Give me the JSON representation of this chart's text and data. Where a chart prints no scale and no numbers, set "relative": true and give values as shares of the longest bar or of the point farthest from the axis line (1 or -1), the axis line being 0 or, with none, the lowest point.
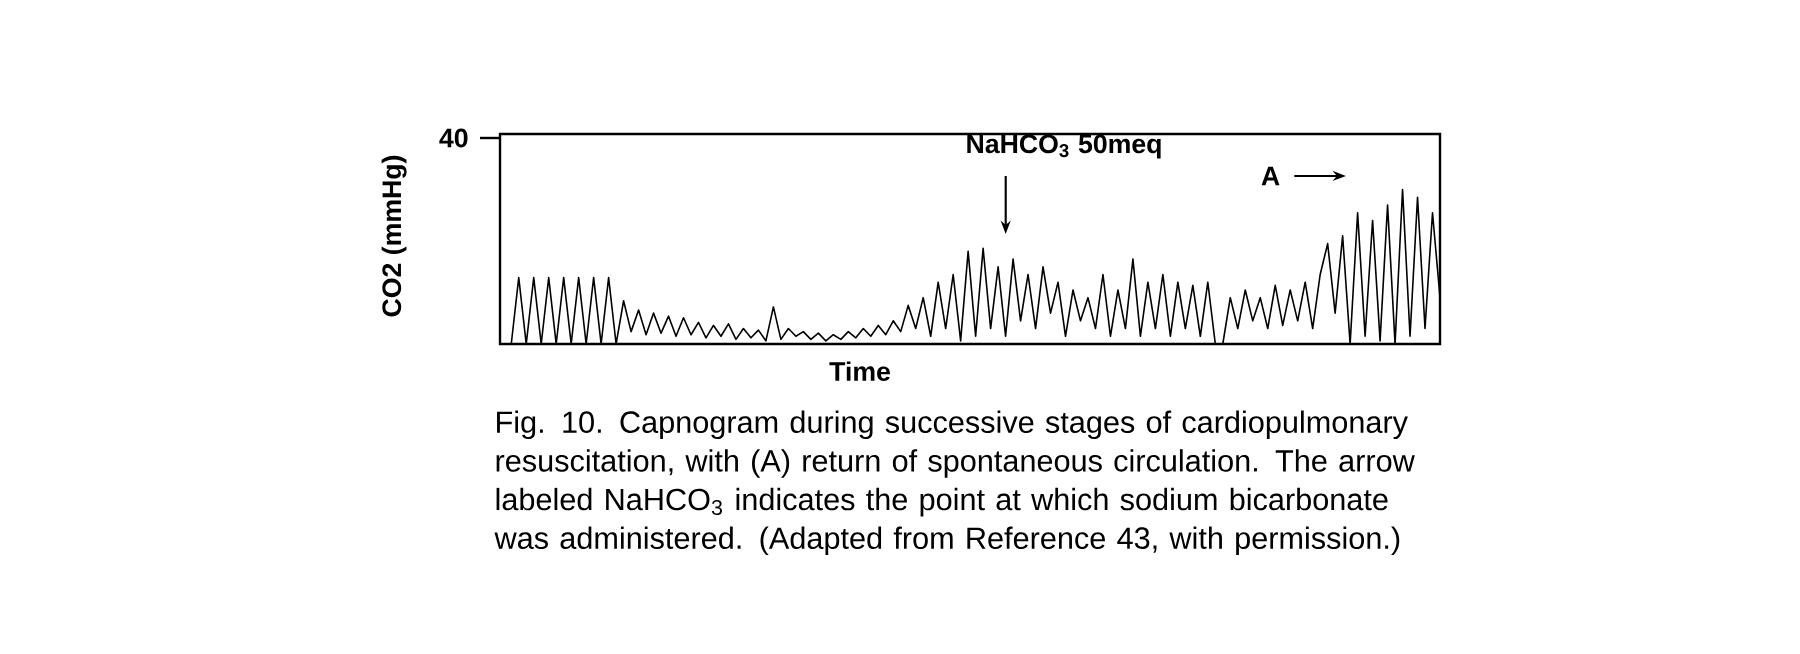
{
  "chart_data": {
    "type": "line",
    "relative": true,
    "xlabel": "Time",
    "ylabel": "CO2 (mmHg)",
    "categories": [
      null,
      null,
      null,
      null,
      null,
      null,
      null,
      null,
      null,
      null,
      null,
      null,
      null,
      null,
      null,
      null,
      null,
      null,
      null,
      null,
      null,
      null,
      null,
      null,
      null,
      null,
      null,
      null,
      null,
      null,
      null,
      null,
      null,
      null,
      null,
      null,
      null,
      null,
      null,
      null,
      null,
      null,
      null,
      null,
      null,
      null,
      null,
      null,
      null,
      null,
      null,
      null,
      null,
      null,
      null,
      null,
      null,
      null,
      null,
      null,
      null,
      null,
      null,
      null,
      null,
      null,
      null,
      null,
      null,
      null,
      null,
      null,
      null,
      null,
      null,
      null,
      null,
      null,
      null,
      null,
      null,
      null,
      null,
      null,
      null,
      null,
      null,
      null,
      null,
      null,
      null,
      null,
      null,
      null,
      null,
      null,
      null,
      null,
      null,
      null,
      null,
      null,
      null,
      null,
      null,
      null,
      null,
      null,
      null,
      null,
      null,
      null,
      null,
      null,
      null,
      null,
      null,
      null,
      null,
      null,
      null,
      null,
      null,
      null,
      null
    ],
    "series": [
      {
        "color": "#000000",
        "values": [
          0,
          0.43,
          0,
          0.43,
          0,
          0.43,
          0,
          0.43,
          0,
          0.43,
          0,
          0.43,
          0,
          0.43,
          0,
          0.28,
          0.08,
          0.22,
          0.06,
          0.2,
          0.07,
          0.18,
          0.05,
          0.17,
          0.06,
          0.14,
          0.04,
          0.12,
          0.05,
          0.13,
          0.03,
          0.1,
          0.04,
          0.09,
          0.02,
          0.24,
          0.03,
          0.1,
          0.05,
          0.08,
          0.03,
          0.07,
          0.02,
          0.06,
          0.03,
          0.08,
          0.04,
          0.1,
          0.05,
          0.12,
          0.06,
          0.15,
          0.08,
          0.25,
          0.1,
          0.3,
          0.05,
          0.4,
          0.1,
          0.45,
          0.02,
          0.6,
          0.05,
          0.62,
          0.1,
          0.5,
          0.05,
          0.55,
          0.15,
          0.45,
          0.1,
          0.5,
          0.2,
          0.4,
          0.05,
          0.35,
          0.15,
          0.3,
          0.1,
          0.45,
          0.05,
          0.35,
          0.1,
          0.55,
          0.05,
          0.4,
          0.1,
          0.45,
          0.05,
          0.4,
          0.1,
          0.38,
          0.05,
          0.4,
          0.0,
          0.0,
          0.3,
          0.1,
          0.35,
          0.15,
          0.3,
          0.1,
          0.38,
          0.12,
          0.35,
          0.15,
          0.4,
          0.1,
          0.45,
          0.65,
          0.2,
          0.7,
          0.0,
          0.85,
          0.05,
          0.8,
          0.02,
          0.9,
          0.0,
          1.0,
          0.05,
          0.95,
          0.1,
          0.85,
          0.3
        ]
      }
    ],
    "annotations": [
      "40",
      "NaHCO$_{3}$ 50meq",
      "A",
      "Fig. 10. Capnogram during successive stages of cardiopulmonary resuscitation, with (A) return of spontaneous circulation. The arrow labeled NaHCO$_{3}$ indicates the point at which sodium bicarbonate was administered. (Adapted from Reference 43, with permission.)"
    ]
  }
}
